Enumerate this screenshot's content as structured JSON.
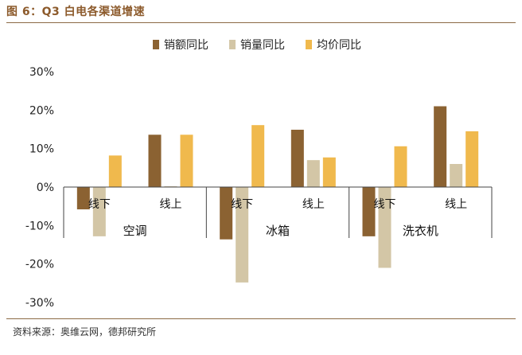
{
  "figure_title": "图 6：Q3 白电各渠道增速",
  "source": "资料来源：奥维云网，德邦研究所",
  "colors": {
    "rule": "#8c6a45",
    "title": "#8c5a2b"
  },
  "chart_data": {
    "type": "bar",
    "title": "",
    "xlabel": "",
    "ylabel": "",
    "ylim": [
      -30,
      30
    ],
    "yticks": [
      "30%",
      "20%",
      "10%",
      "0%",
      "-10%",
      "-20%",
      "-30%"
    ],
    "yticks_values": [
      30,
      20,
      10,
      0,
      -10,
      -20,
      -30
    ],
    "legend_position": "top",
    "groups": [
      {
        "name": "空调",
        "channels": [
          "线下",
          "线上"
        ]
      },
      {
        "name": "冰箱",
        "channels": [
          "线下",
          "线上"
        ]
      },
      {
        "name": "洗衣机",
        "channels": [
          "线下",
          "线上"
        ]
      }
    ],
    "categories": [
      "空调-线下",
      "空调-线上",
      "冰箱-线下",
      "冰箱-线上",
      "洗衣机-线下",
      "洗衣机-线上"
    ],
    "series": [
      {
        "name": "销额同比",
        "color": "#8b6232",
        "values": [
          -5.8,
          13.6,
          -13.6,
          14.9,
          -12.8,
          21.0
        ]
      },
      {
        "name": "销量同比",
        "color": "#d3c6a6",
        "values": [
          -12.8,
          0.2,
          -24.8,
          7.0,
          -21.0,
          6.0
        ]
      },
      {
        "name": "均价同比",
        "color": "#f0b94d",
        "values": [
          8.2,
          13.6,
          16.1,
          7.7,
          10.6,
          14.5
        ]
      }
    ]
  }
}
